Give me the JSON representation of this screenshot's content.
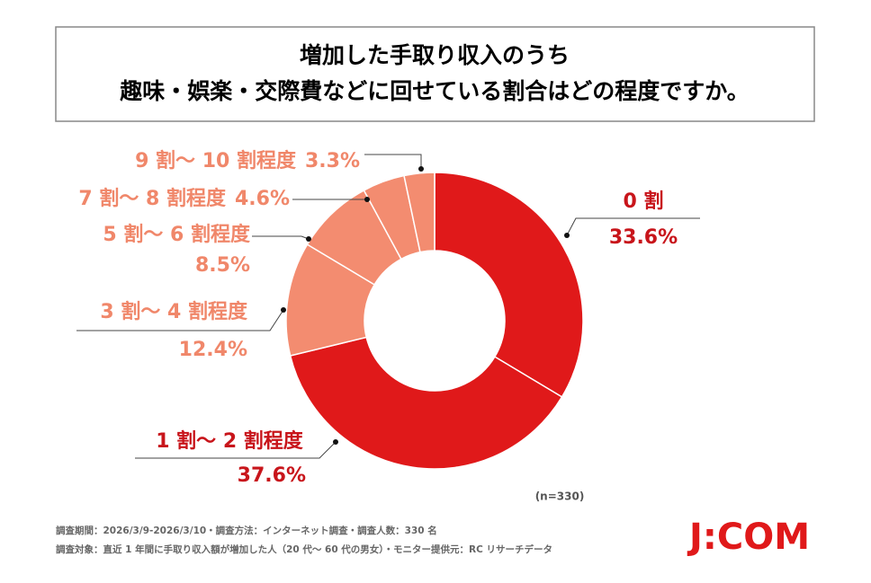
{
  "chart_data": {
    "type": "donut",
    "title": [
      "増加した手取り収入のうち",
      "趣味・娯楽・交際費などに回せている割合はどの程度ですか。"
    ],
    "categories": [
      "0 割",
      "1 割～ 2 割程度",
      "3 割～ 4 割程度",
      "5 割～ 6 割程度",
      "7 割～ 8 割程度",
      "9 割～ 10 割程度"
    ],
    "values": [
      33.6,
      37.6,
      12.4,
      8.5,
      4.6,
      3.3
    ],
    "value_labels": [
      "33.6%",
      "37.6%",
      "12.4%",
      "8.5%",
      "4.6%",
      "3.3%"
    ],
    "colors": [
      "#e0191a",
      "#e0191a",
      "#f38c70",
      "#f38c70",
      "#f38c70",
      "#f38c70"
    ],
    "label_colors": [
      "#c8151b",
      "#c8151b",
      "#f0876a",
      "#f0876a",
      "#f0876a",
      "#f0876a"
    ],
    "sample_note": "(n=330)"
  },
  "footnotes": [
    "調査期間：2026/3/9-2026/3/10・調査方法：インターネット調査・調査人数：330 名",
    "調査対象：直近 1 年間に手取り収入額が増加した人（20 代～ 60 代の男女）・モニター提供元：RC リサーチデータ"
  ],
  "logo": "J:COM"
}
